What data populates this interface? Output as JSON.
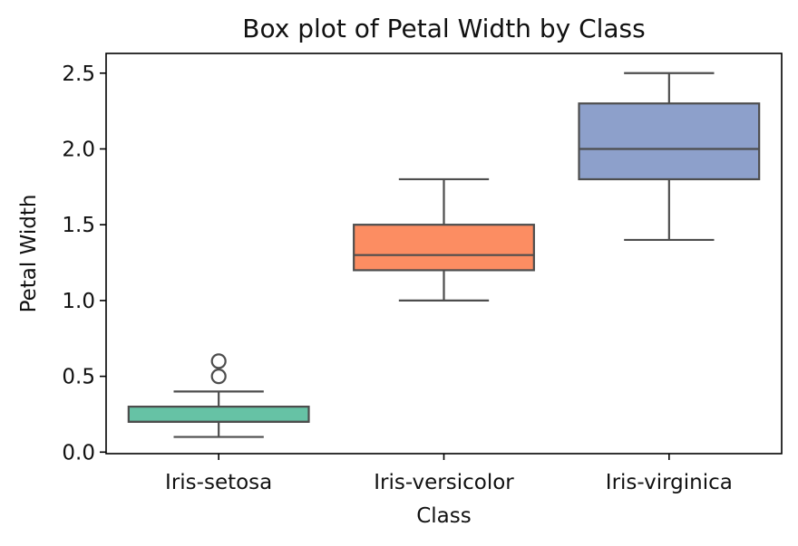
{
  "chart_data": {
    "type": "box",
    "title": "Box plot of Petal Width by Class",
    "xlabel": "Class",
    "ylabel": "Petal Width",
    "categories": [
      "Iris-setosa",
      "Iris-versicolor",
      "Iris-virginica"
    ],
    "ylim": [
      -0.01,
      2.63
    ],
    "yticks": [
      0.0,
      0.5,
      1.0,
      1.5,
      2.0,
      2.5
    ],
    "ytick_labels": [
      "0.0",
      "0.5",
      "1.0",
      "1.5",
      "2.0",
      "2.5"
    ],
    "boxes": [
      {
        "category": "Iris-setosa",
        "whisker_low": 0.1,
        "q1": 0.2,
        "median": 0.2,
        "q3": 0.3,
        "whisker_high": 0.4,
        "outliers": [
          0.5,
          0.6
        ],
        "color": "#66c2a5"
      },
      {
        "category": "Iris-versicolor",
        "whisker_low": 1.0,
        "q1": 1.2,
        "median": 1.3,
        "q3": 1.5,
        "whisker_high": 1.8,
        "outliers": [],
        "color": "#fc8d62"
      },
      {
        "category": "Iris-virginica",
        "whisker_low": 1.4,
        "q1": 1.8,
        "median": 2.0,
        "q3": 2.3,
        "whisker_high": 2.5,
        "outliers": [],
        "color": "#8da0cb"
      }
    ],
    "grid": false,
    "legend": "none"
  },
  "colors": {
    "line": "#4d4d4d",
    "axis": "#000000",
    "text": "#111111"
  }
}
